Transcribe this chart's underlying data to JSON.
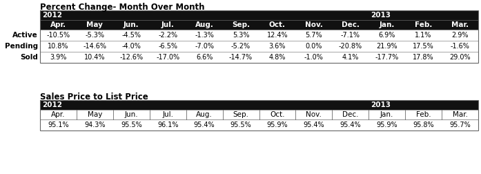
{
  "title1": "Percent Change- Month Over Month",
  "title2": "Sales Price to List Price",
  "year_headers": [
    "2012",
    "2013"
  ],
  "col_headers": [
    "Apr.",
    "May",
    "Jun.",
    "Jul.",
    "Aug.",
    "Sep.",
    "Oct.",
    "Nov.",
    "Dec.",
    "Jan.",
    "Feb.",
    "Mar."
  ],
  "row_labels_1": [
    "Active",
    "Pending",
    "Sold"
  ],
  "table1_data": [
    [
      "-10.5%",
      "-5.3%",
      "-4.5%",
      "-2.2%",
      "-1.3%",
      "5.3%",
      "12.4%",
      "5.7%",
      "-7.1%",
      "6.9%",
      "1.1%",
      "2.9%"
    ],
    [
      "10.8%",
      "-14.6%",
      "-4.0%",
      "-6.5%",
      "-7.0%",
      "-5.2%",
      "3.6%",
      "0.0%",
      "-20.8%",
      "21.9%",
      "17.5%",
      "-1.6%"
    ],
    [
      "3.9%",
      "10.4%",
      "-12.6%",
      "-17.0%",
      "6.6%",
      "-14.7%",
      "4.8%",
      "-1.0%",
      "4.1%",
      "-17.7%",
      "17.8%",
      "29.0%"
    ]
  ],
  "table2_data": [
    [
      "95.1%",
      "94.3%",
      "95.5%",
      "96.1%",
      "95.4%",
      "95.5%",
      "95.9%",
      "95.4%",
      "95.4%",
      "95.9%",
      "95.8%",
      "95.7%"
    ]
  ],
  "header_bg": "#111111",
  "header_fg": "#ffffff",
  "row_bg": "#ffffff",
  "row_fg": "#000000",
  "label_fg": "#000000",
  "border_color": "#666666",
  "divider_color": "#999999",
  "font_size_title": 8.5,
  "font_size_header": 7.5,
  "font_size_data": 7.0,
  "font_size_label": 7.5,
  "year2012_span": 9,
  "year2013_span": 3
}
